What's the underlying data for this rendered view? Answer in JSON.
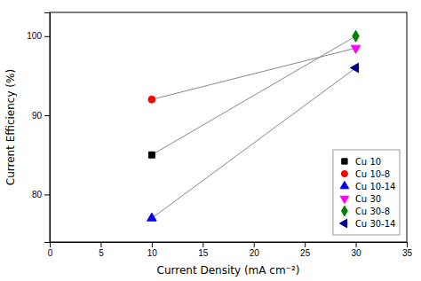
{
  "chart_data": {
    "type": "scatter",
    "xlabel": "Current Density (mA cm⁻²)",
    "ylabel": "Current Efficiency (%)",
    "series": [
      {
        "name": "Cu 10",
        "x": [
          10
        ],
        "values": [
          85
        ],
        "color": "black",
        "marker": "square"
      },
      {
        "name": "Cu 10-8",
        "x": [
          10
        ],
        "values": [
          92
        ],
        "color": "red",
        "marker": "circle"
      },
      {
        "name": "Cu 10-14",
        "x": [
          10
        ],
        "values": [
          77
        ],
        "color": "blue",
        "marker": "triangle-up"
      },
      {
        "name": "Cu 30",
        "x": [
          30
        ],
        "values": [
          98.5
        ],
        "color": "#ff00ff",
        "marker": "triangle-down"
      },
      {
        "name": "Cu 30-8",
        "x": [
          30
        ],
        "values": [
          100
        ],
        "color": "#008000",
        "marker": "diamond"
      },
      {
        "name": "Cu 30-14",
        "x": [
          30
        ],
        "values": [
          96
        ],
        "color": "#00008b",
        "marker": "triangle-left"
      }
    ],
    "connecting_lines": [
      {
        "from": 0,
        "to": 4,
        "color": "#888888",
        "line_style": "solid"
      },
      {
        "from": 1,
        "to": 3,
        "color": "#888888",
        "line_style": "solid"
      },
      {
        "from": 2,
        "to": 5,
        "color": "#888888",
        "line_style": "solid"
      }
    ],
    "xlim": [
      0,
      35
    ],
    "ylim": [
      74,
      103
    ],
    "xticks": [
      0,
      5,
      10,
      15,
      20,
      25,
      30,
      35
    ],
    "yticks": [
      80,
      90,
      100
    ],
    "grid": false,
    "legend": "lower right"
  }
}
